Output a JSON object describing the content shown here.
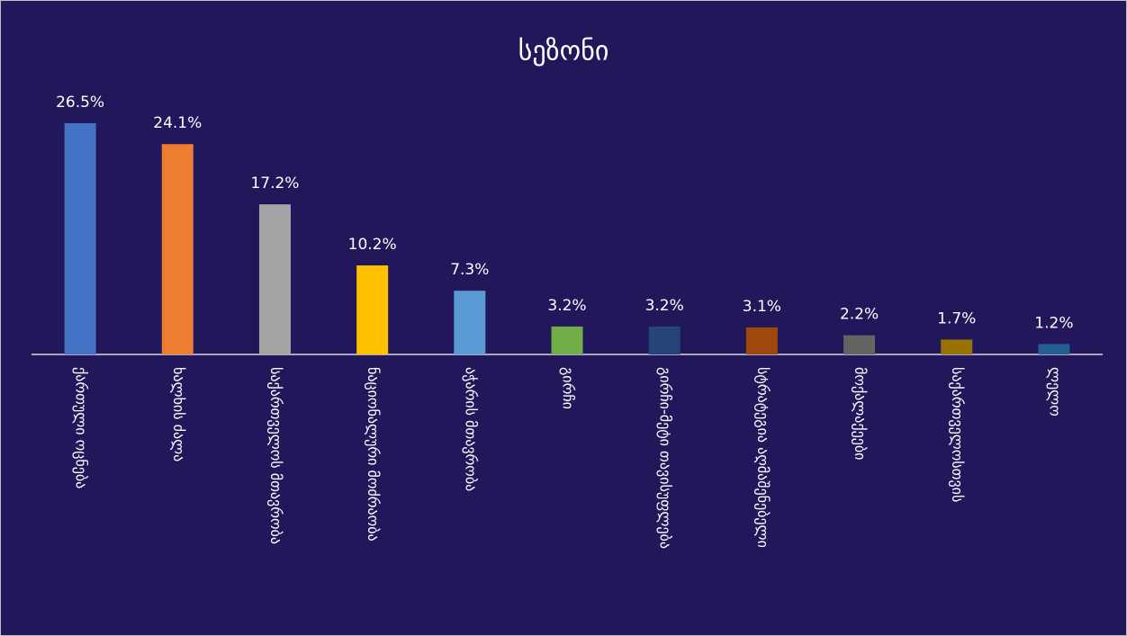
{
  "chart_data": {
    "type": "bar",
    "title": "სეზონი",
    "categories": [
      "ქართული ოცნება",
      "ხალხის ძალა",
      "საქართველოს მთავრობა",
      "ნაციონალური მოძრაობა",
      "აჭარის მთავრობა",
      "გირჩი",
      "გირჩი-მეტი თავისუფლება",
      "სტრატეგია აღმაშენებელი",
      "მოქალაქეები",
      "საქართველოსთვის",
      "ლელო"
    ],
    "values": [
      26.5,
      24.1,
      17.2,
      10.2,
      7.3,
      3.2,
      3.2,
      3.1,
      2.2,
      1.7,
      1.2
    ],
    "value_labels": [
      "26.5%",
      "24.1%",
      "17.2%",
      "10.2%",
      "7.3%",
      "3.2%",
      "3.2%",
      "3.1%",
      "2.2%",
      "1.7%",
      "1.2%"
    ],
    "colors": [
      "#4472c4",
      "#ed7d31",
      "#a5a5a5",
      "#ffc000",
      "#5b9bd5",
      "#70ad47",
      "#264478",
      "#9e480e",
      "#636363",
      "#997300",
      "#255e91"
    ]
  }
}
